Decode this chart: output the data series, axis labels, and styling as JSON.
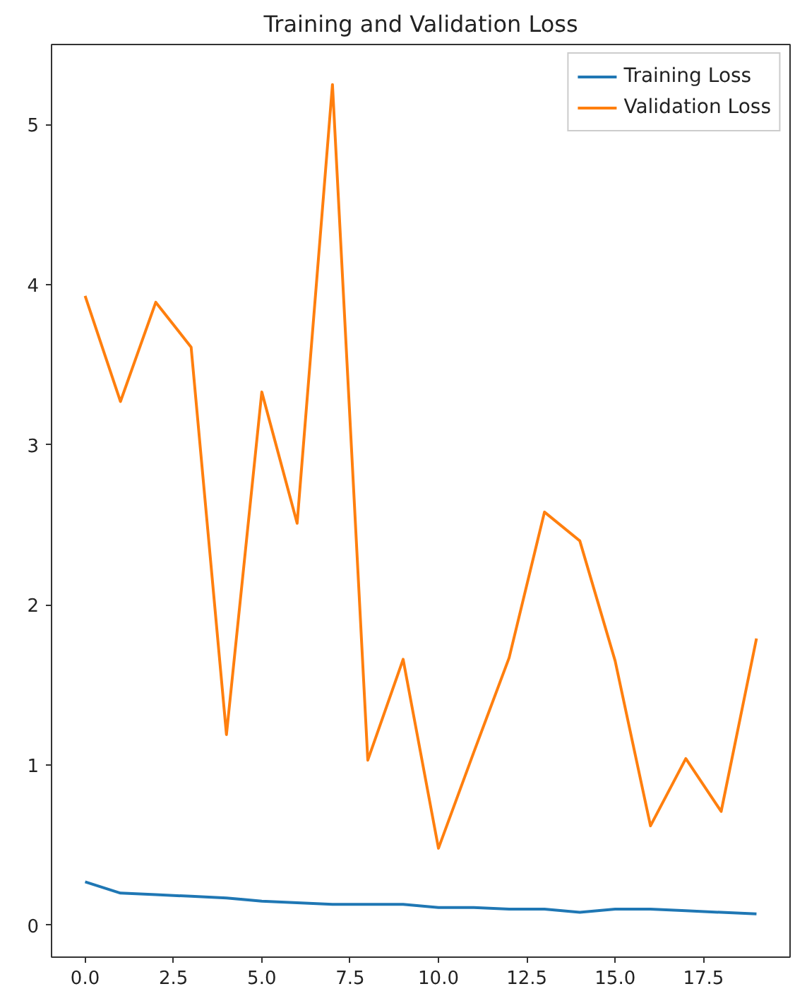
{
  "chart_data": {
    "type": "line",
    "title": "Training and Validation Loss",
    "x": [
      0,
      1,
      2,
      3,
      4,
      5,
      6,
      7,
      8,
      9,
      10,
      11,
      12,
      13,
      14,
      15,
      16,
      17,
      18,
      19
    ],
    "series": [
      {
        "name": "Training Loss",
        "color": "#1f77b4",
        "values": [
          0.27,
          0.2,
          0.19,
          0.18,
          0.17,
          0.15,
          0.14,
          0.13,
          0.13,
          0.13,
          0.11,
          0.11,
          0.1,
          0.1,
          0.08,
          0.1,
          0.1,
          0.09,
          0.08,
          0.07
        ]
      },
      {
        "name": "Validation Loss",
        "color": "#ff7f0e",
        "values": [
          3.93,
          3.27,
          3.89,
          3.61,
          1.19,
          3.33,
          2.51,
          5.25,
          1.03,
          1.66,
          0.48,
          1.08,
          1.67,
          2.58,
          2.4,
          1.65,
          0.62,
          1.04,
          0.71,
          1.79
        ]
      }
    ],
    "xlim": [
      -0.95,
      19.95
    ],
    "ylim": [
      -0.2,
      5.5
    ],
    "xticks": [
      {
        "value": 0,
        "label": "0.0"
      },
      {
        "value": 2.5,
        "label": "2.5"
      },
      {
        "value": 5,
        "label": "5.0"
      },
      {
        "value": 7.5,
        "label": "7.5"
      },
      {
        "value": 10,
        "label": "10.0"
      },
      {
        "value": 12.5,
        "label": "12.5"
      },
      {
        "value": 15,
        "label": "15.0"
      },
      {
        "value": 17.5,
        "label": "17.5"
      }
    ],
    "yticks": [
      0,
      1,
      2,
      3,
      4,
      5
    ],
    "legend": "top right",
    "grid": false,
    "line_style": "solid"
  }
}
